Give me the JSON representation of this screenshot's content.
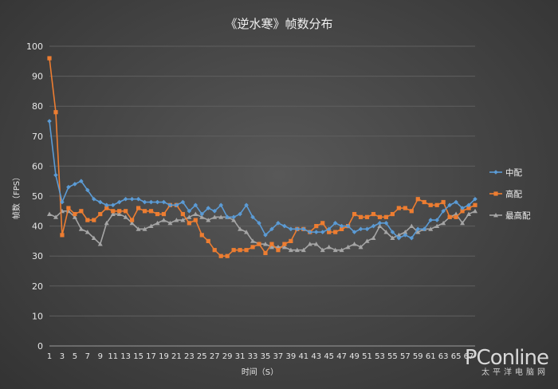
{
  "chart_data": {
    "type": "line",
    "title": "《逆水寒》帧数分布",
    "xlabel": "时间（S）",
    "ylabel": "帧数（FPS）",
    "ylim": [
      0,
      100
    ],
    "yticks": [
      0,
      10,
      20,
      30,
      40,
      50,
      60,
      70,
      80,
      90,
      100
    ],
    "xticks": [
      1,
      3,
      5,
      7,
      9,
      11,
      13,
      15,
      17,
      19,
      21,
      23,
      25,
      27,
      29,
      31,
      33,
      35,
      37,
      39,
      41,
      43,
      45,
      47,
      49,
      51,
      53,
      55,
      57,
      59,
      61,
      63,
      65,
      67
    ],
    "x": [
      1,
      2,
      3,
      4,
      5,
      6,
      7,
      8,
      9,
      10,
      11,
      12,
      13,
      14,
      15,
      16,
      17,
      18,
      19,
      20,
      21,
      22,
      23,
      24,
      25,
      26,
      27,
      28,
      29,
      30,
      31,
      32,
      33,
      34,
      35,
      36,
      37,
      38,
      39,
      40,
      41,
      42,
      43,
      44,
      45,
      46,
      47,
      48,
      49,
      50,
      51,
      52,
      53,
      54,
      55,
      56,
      57,
      58,
      59,
      60,
      61,
      62,
      63,
      64,
      65,
      66,
      67,
      68
    ],
    "grid": true,
    "legend_position": "right",
    "series": [
      {
        "name": "中配",
        "color": "#5b9bd5",
        "marker": "diamond",
        "values": [
          75,
          57,
          48,
          53,
          54,
          55,
          52,
          49,
          48,
          47,
          47,
          48,
          49,
          49,
          49,
          48,
          48,
          48,
          48,
          47,
          47,
          48,
          45,
          47,
          44,
          46,
          45,
          47,
          43,
          43,
          44,
          47,
          43,
          41,
          37,
          39,
          41,
          40,
          39,
          39,
          39,
          38,
          38,
          38,
          39,
          41,
          40,
          40,
          38,
          39,
          39,
          40,
          41,
          41,
          38,
          36,
          37,
          36,
          39,
          39,
          42,
          42,
          45,
          47,
          48,
          46,
          47,
          49
        ]
      },
      {
        "name": "高配",
        "color": "#ed7d31",
        "marker": "square",
        "values": [
          96,
          78,
          37,
          46,
          44,
          45,
          42,
          42,
          44,
          46,
          45,
          45,
          45,
          42,
          46,
          45,
          45,
          44,
          44,
          47,
          47,
          44,
          41,
          42,
          37,
          35,
          32,
          30,
          30,
          32,
          32,
          32,
          33,
          34,
          31,
          34,
          32,
          34,
          35,
          39,
          39,
          38,
          40,
          41,
          38,
          38,
          39,
          40,
          44,
          43,
          43,
          44,
          43,
          43,
          44,
          46,
          46,
          45,
          49,
          48,
          47,
          47,
          48,
          43,
          43,
          45,
          46,
          47
        ]
      },
      {
        "name": "最高配",
        "color": "#a5a5a5",
        "marker": "triangle",
        "values": [
          44,
          43,
          45,
          45,
          43,
          39,
          38,
          36,
          34,
          41,
          44,
          44,
          43,
          41,
          39,
          39,
          40,
          41,
          42,
          41,
          42,
          42,
          43,
          44,
          43,
          42,
          43,
          43,
          43,
          42,
          39,
          38,
          35,
          34,
          34,
          33,
          33,
          33,
          32,
          32,
          32,
          34,
          34,
          32,
          33,
          32,
          32,
          33,
          34,
          33,
          35,
          36,
          40,
          38,
          36,
          37,
          38,
          40,
          38,
          39,
          39,
          40,
          41,
          43,
          44,
          41,
          44,
          45
        ]
      }
    ]
  },
  "watermark": {
    "logo": "PConline",
    "sub": "太平洋电脑网"
  }
}
